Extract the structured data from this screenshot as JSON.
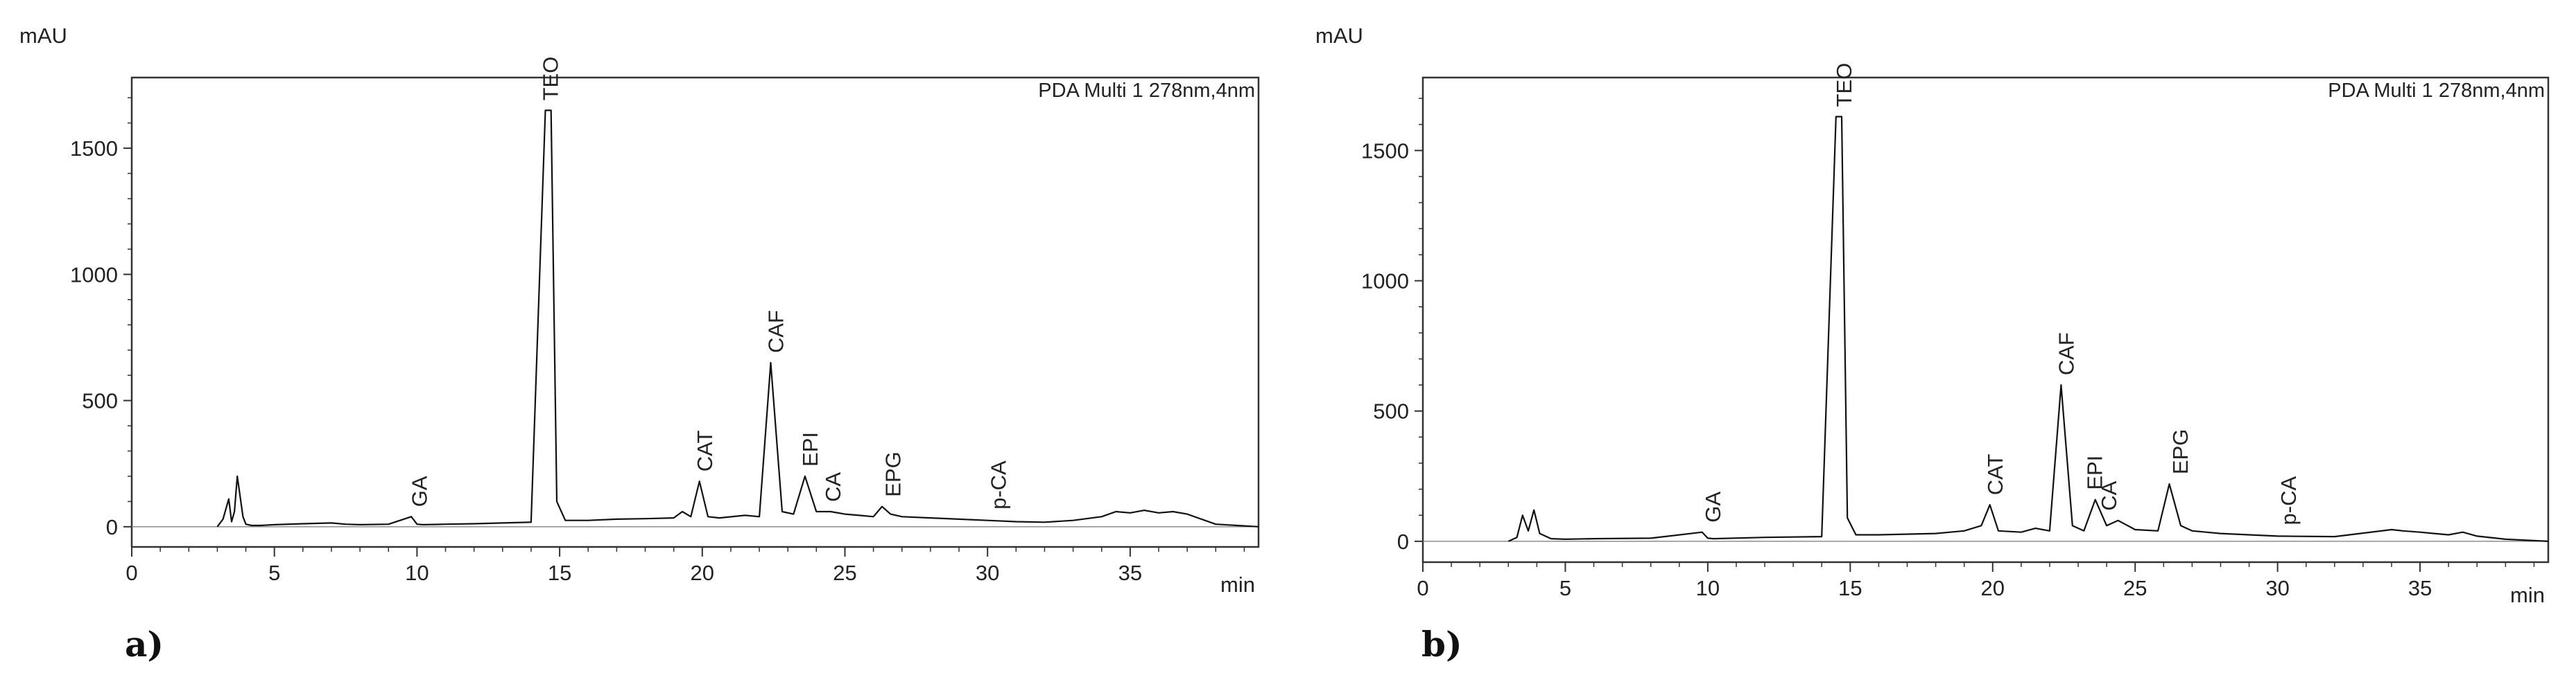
{
  "chart_data": [
    {
      "type": "line",
      "panel_label": "a)",
      "ylabel": "mAU",
      "xlabel": "min",
      "annotation": "PDA Multi 1 278nm,4nm",
      "xlim": [
        0,
        39.5
      ],
      "ylim": [
        -80,
        1780
      ],
      "x_ticks": [
        0,
        5,
        10,
        15,
        20,
        25,
        30,
        35
      ],
      "y_ticks": [
        0,
        500,
        1000,
        1500
      ],
      "grid": false,
      "series": [
        {
          "x": [
            3.0,
            3.2,
            3.4,
            3.5,
            3.6,
            3.7,
            3.9,
            4.0,
            4.2,
            4.5,
            5.0,
            6.0,
            7.0,
            7.5,
            8.0,
            9.0,
            9.8,
            10.0,
            10.2,
            11.0,
            12.0,
            13.0,
            14.0,
            14.5,
            14.7,
            14.9,
            15.2,
            16.0,
            17.0,
            18.0,
            19.0,
            19.3,
            19.6,
            19.9,
            20.2,
            20.6,
            21.5,
            22.0,
            22.4,
            22.8,
            23.2,
            23.6,
            24.0,
            24.5,
            25.0,
            25.5,
            26.0,
            26.3,
            26.6,
            27.0,
            28.0,
            29.0,
            30.0,
            31.0,
            32.0,
            33.0,
            34.0,
            34.5,
            35.0,
            35.5,
            36.0,
            36.5,
            37.0,
            38.0,
            39.5
          ],
          "y": [
            0,
            30,
            110,
            20,
            60,
            200,
            40,
            10,
            5,
            5,
            8,
            12,
            15,
            10,
            8,
            10,
            40,
            10,
            8,
            10,
            12,
            15,
            18,
            1650,
            1650,
            100,
            25,
            25,
            30,
            32,
            35,
            60,
            40,
            180,
            40,
            35,
            45,
            40,
            650,
            60,
            50,
            200,
            60,
            60,
            50,
            45,
            40,
            80,
            50,
            40,
            35,
            30,
            25,
            20,
            18,
            25,
            40,
            60,
            55,
            65,
            55,
            60,
            50,
            10,
            0
          ]
        }
      ],
      "peaks": [
        {
          "label": "GA",
          "x": 10.1,
          "y": 40
        },
        {
          "label": "TEO",
          "x": 14.7,
          "y": 1650
        },
        {
          "label": "CAT",
          "x": 20.1,
          "y": 180
        },
        {
          "label": "CAF",
          "x": 22.6,
          "y": 650
        },
        {
          "label": "EPI",
          "x": 23.8,
          "y": 200
        },
        {
          "label": "CA",
          "x": 24.6,
          "y": 60
        },
        {
          "label": "EPG",
          "x": 26.7,
          "y": 80
        },
        {
          "label": "p-CA",
          "x": 30.4,
          "y": 30
        }
      ]
    },
    {
      "type": "line",
      "panel_label": "b)",
      "ylabel": "mAU",
      "xlabel": "min",
      "annotation": "PDA Multi 1 278nm,4nm",
      "xlim": [
        0,
        39.5
      ],
      "ylim": [
        -80,
        1780
      ],
      "x_ticks": [
        0,
        5,
        10,
        15,
        20,
        25,
        30,
        35
      ],
      "y_ticks": [
        0,
        500,
        1000,
        1500
      ],
      "grid": false,
      "series": [
        {
          "x": [
            3.0,
            3.3,
            3.5,
            3.7,
            3.9,
            4.1,
            4.5,
            5.0,
            6.0,
            8.0,
            9.8,
            10.0,
            10.2,
            12.0,
            14.0,
            14.5,
            14.7,
            14.9,
            15.2,
            16.0,
            18.0,
            19.0,
            19.6,
            19.9,
            20.2,
            21.0,
            21.5,
            22.0,
            22.4,
            22.8,
            23.2,
            23.6,
            24.0,
            24.4,
            25.0,
            25.8,
            26.2,
            26.6,
            27.0,
            28.0,
            29.0,
            30.0,
            32.0,
            34.0,
            34.4,
            35.0,
            35.5,
            36.0,
            36.5,
            37.0,
            38.0,
            39.5
          ],
          "y": [
            0,
            15,
            100,
            40,
            120,
            30,
            10,
            8,
            10,
            12,
            35,
            12,
            10,
            15,
            18,
            1630,
            1630,
            90,
            25,
            25,
            30,
            40,
            60,
            140,
            40,
            35,
            50,
            40,
            600,
            60,
            40,
            160,
            60,
            80,
            45,
            40,
            220,
            60,
            40,
            30,
            25,
            20,
            18,
            45,
            40,
            35,
            30,
            25,
            35,
            20,
            8,
            0
          ]
        }
      ],
      "peaks": [
        {
          "label": "GA",
          "x": 10.2,
          "y": 35
        },
        {
          "label": "TEO",
          "x": 14.8,
          "y": 1630
        },
        {
          "label": "CAT",
          "x": 20.1,
          "y": 140
        },
        {
          "label": "CAF",
          "x": 22.6,
          "y": 600
        },
        {
          "label": "EPI",
          "x": 23.6,
          "y": 160
        },
        {
          "label": "CA",
          "x": 24.1,
          "y": 80
        },
        {
          "label": "EPG",
          "x": 26.6,
          "y": 220
        },
        {
          "label": "p-CA",
          "x": 30.4,
          "y": 25
        }
      ]
    }
  ]
}
